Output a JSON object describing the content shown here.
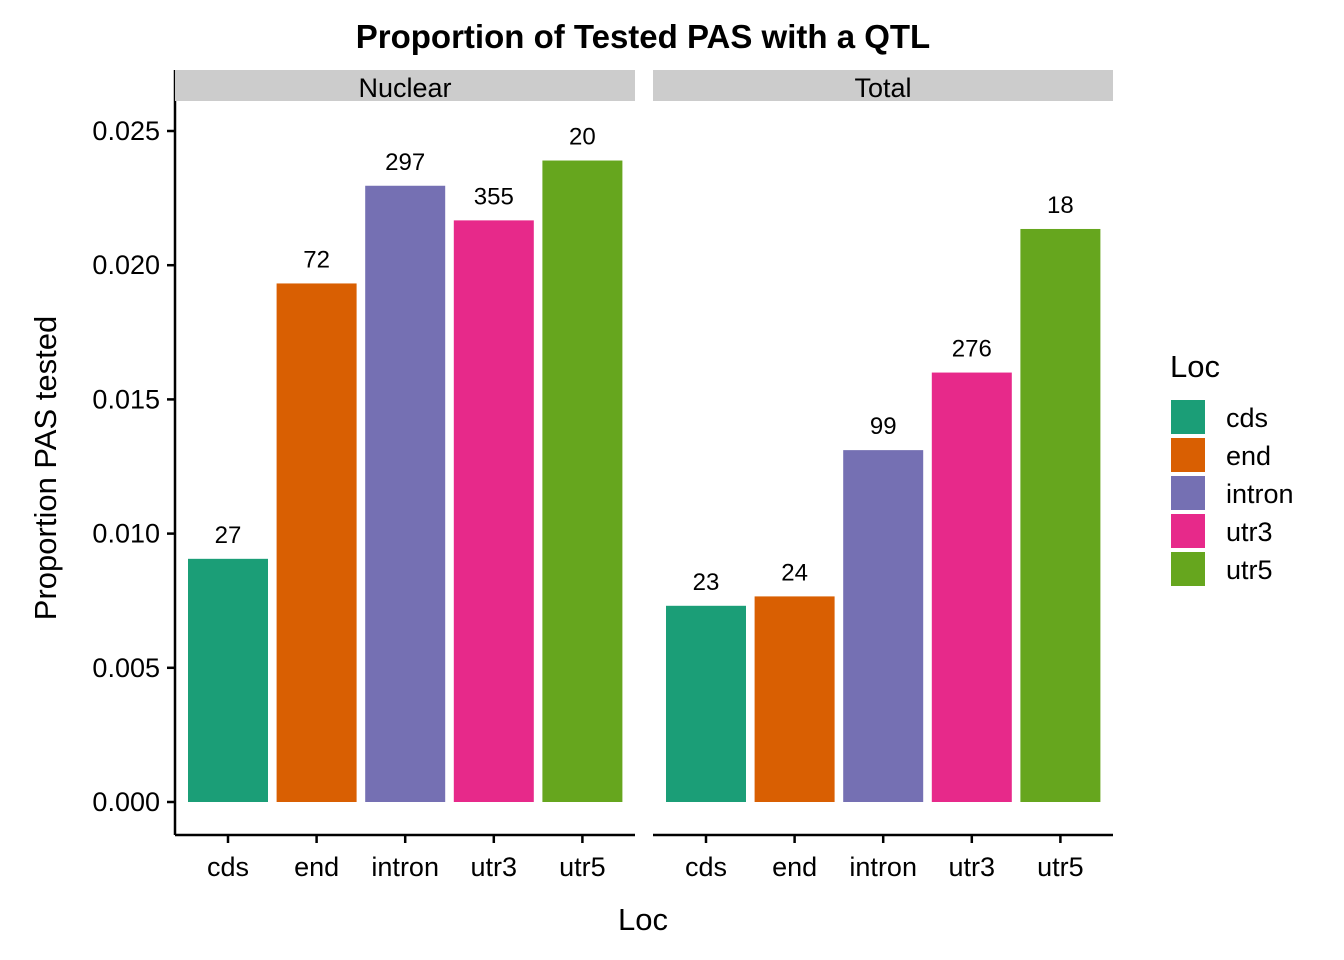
{
  "chart_data": {
    "type": "bar",
    "title": "Proportion of Tested PAS with a QTL",
    "xlabel": "Loc",
    "ylabel": "Proportion PAS tested",
    "ylim": [
      0,
      0.0262
    ],
    "yticks": [
      0.0,
      0.005,
      0.01,
      0.015,
      0.02,
      0.025
    ],
    "ytick_labels": [
      "0.000",
      "0.005",
      "0.010",
      "0.015",
      "0.020",
      "0.025"
    ],
    "categories": [
      "cds",
      "end",
      "intron",
      "utr3",
      "utr5"
    ],
    "facets": [
      {
        "name": "Nuclear",
        "values": [
          0.00906,
          0.01932,
          0.02296,
          0.02167,
          0.0239
        ],
        "labels": [
          "27",
          "72",
          "297",
          "355",
          "20"
        ]
      },
      {
        "name": "Total",
        "values": [
          0.00731,
          0.00766,
          0.01311,
          0.016,
          0.02135
        ],
        "labels": [
          "23",
          "24",
          "99",
          "276",
          "18"
        ]
      }
    ],
    "legend": {
      "title": "Loc",
      "position": "right",
      "items": [
        "cds",
        "end",
        "intron",
        "utr3",
        "utr5"
      ],
      "colors": [
        "#1B9E77",
        "#D95F02",
        "#7570B3",
        "#E7298A",
        "#66A61E"
      ]
    },
    "strip_color": "#CCCCCC",
    "grid": false
  }
}
